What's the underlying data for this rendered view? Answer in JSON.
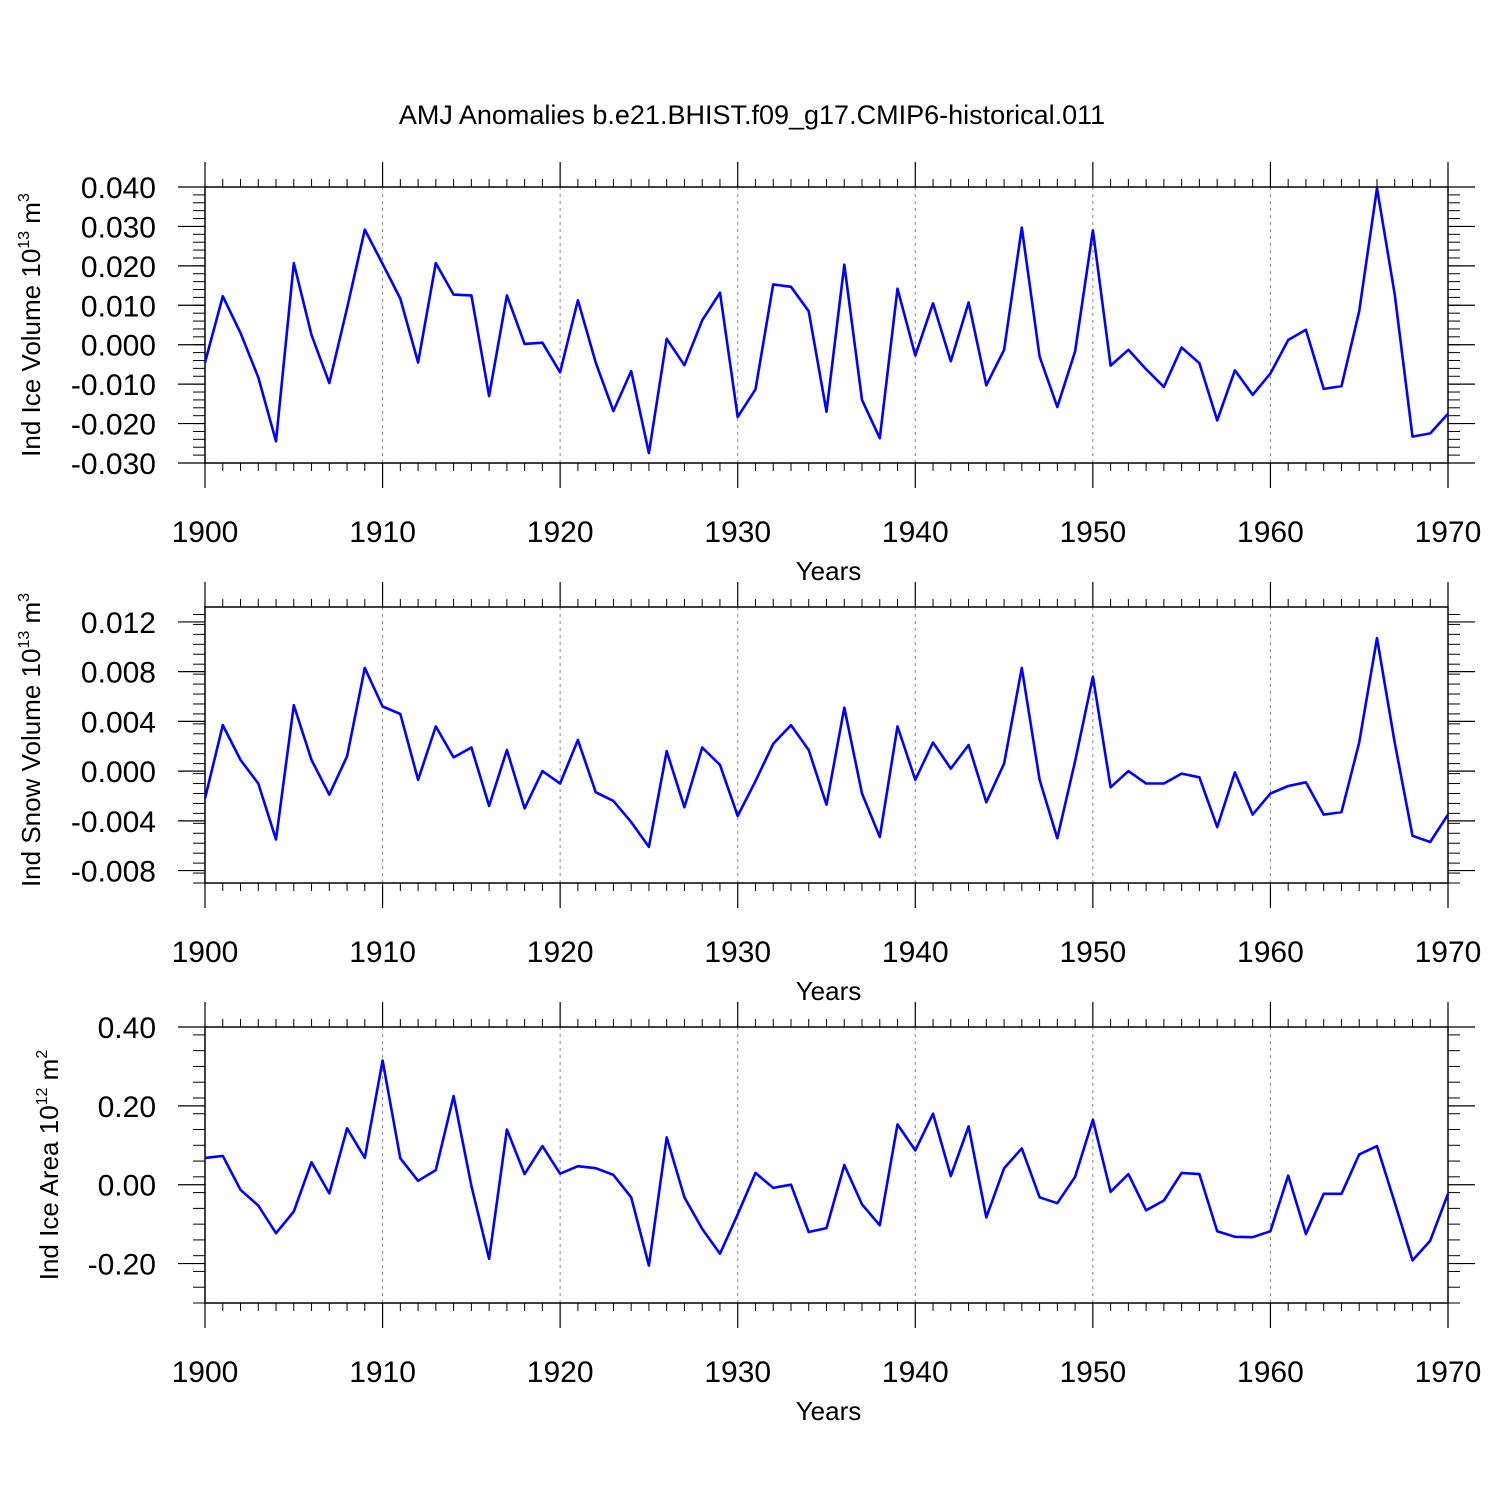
{
  "title": "AMJ Anomalies b.e21.BHIST.f09_g17.CMIP6-historical.011",
  "line_color": "#0000ff",
  "chart_data": [
    {
      "type": "line",
      "ylabel": "Ind Ice Volume 10",
      "ylabel_exp": "13",
      "ylabel_unit": " m",
      "ylabel_unit_exp": "3",
      "xlabel": "Years",
      "xlim": [
        1900,
        1970
      ],
      "ylim": [
        -0.03,
        0.04
      ],
      "xticks": [
        1900,
        1910,
        1920,
        1930,
        1940,
        1950,
        1960,
        1970
      ],
      "yticks": [
        -0.03,
        -0.02,
        -0.01,
        0.0,
        0.01,
        0.02,
        0.03,
        0.04
      ],
      "yticklabels": [
        "-0.030",
        "-0.020",
        "-0.010",
        "0.000",
        "0.010",
        "0.020",
        "0.030",
        "0.040"
      ],
      "grid": "dashed vertical at major x ticks",
      "x": [
        1900,
        1901,
        1902,
        1903,
        1904,
        1905,
        1906,
        1907,
        1908,
        1909,
        1910,
        1911,
        1912,
        1913,
        1914,
        1915,
        1916,
        1917,
        1918,
        1919,
        1920,
        1921,
        1922,
        1923,
        1924,
        1925,
        1926,
        1927,
        1928,
        1929,
        1930,
        1931,
        1932,
        1933,
        1934,
        1935,
        1936,
        1937,
        1938,
        1939,
        1940,
        1941,
        1942,
        1943,
        1944,
        1945,
        1946,
        1947,
        1948,
        1949,
        1950,
        1951,
        1952,
        1953,
        1954,
        1955,
        1956,
        1957,
        1958,
        1959,
        1960,
        1961,
        1962,
        1963,
        1964,
        1965,
        1966,
        1967,
        1968,
        1969,
        1970
      ],
      "values": [
        -0.0045,
        0.0123,
        0.003,
        -0.0083,
        -0.0245,
        0.0207,
        0.0025,
        -0.0097,
        0.0093,
        0.0292,
        0.0205,
        0.0117,
        -0.0045,
        0.0207,
        0.0127,
        0.0125,
        -0.013,
        0.0125,
        0.0002,
        0.0005,
        -0.007,
        0.0113,
        -0.0045,
        -0.0168,
        -0.0067,
        -0.0275,
        0.0015,
        -0.0052,
        0.0062,
        0.0132,
        -0.0183,
        -0.0113,
        0.0153,
        0.0147,
        0.0085,
        -0.017,
        0.0203,
        -0.014,
        -0.0237,
        0.0142,
        -0.0027,
        0.0105,
        -0.0042,
        0.0107,
        -0.0103,
        -0.0013,
        0.0297,
        -0.003,
        -0.0158,
        -0.0017,
        0.029,
        -0.0053,
        -0.0013,
        -0.0062,
        -0.0107,
        -0.0007,
        -0.0047,
        -0.0192,
        -0.0065,
        -0.0127,
        -0.0073,
        0.0012,
        0.0038,
        -0.0112,
        -0.0105,
        0.0085,
        0.0397,
        0.0128,
        -0.0233,
        -0.0225,
        -0.0175
      ]
    },
    {
      "type": "line",
      "ylabel": "Ind Snow Volume 10",
      "ylabel_exp": "13",
      "ylabel_unit": " m",
      "ylabel_unit_exp": "3",
      "xlabel": "Years",
      "xlim": [
        1900,
        1970
      ],
      "ylim": [
        -0.009,
        0.0132
      ],
      "xticks": [
        1900,
        1910,
        1920,
        1930,
        1940,
        1950,
        1960,
        1970
      ],
      "yticks": [
        -0.008,
        -0.004,
        0.0,
        0.004,
        0.008,
        0.012
      ],
      "yticklabels": [
        "-0.008",
        "-0.004",
        "0.000",
        "0.004",
        "0.008",
        "0.012"
      ],
      "grid": "dashed vertical at major x ticks",
      "x": [
        1900,
        1901,
        1902,
        1903,
        1904,
        1905,
        1906,
        1907,
        1908,
        1909,
        1910,
        1911,
        1912,
        1913,
        1914,
        1915,
        1916,
        1917,
        1918,
        1919,
        1920,
        1921,
        1922,
        1923,
        1924,
        1925,
        1926,
        1927,
        1928,
        1929,
        1930,
        1931,
        1932,
        1933,
        1934,
        1935,
        1936,
        1937,
        1938,
        1939,
        1940,
        1941,
        1942,
        1943,
        1944,
        1945,
        1946,
        1947,
        1948,
        1949,
        1950,
        1951,
        1952,
        1953,
        1954,
        1955,
        1956,
        1957,
        1958,
        1959,
        1960,
        1961,
        1962,
        1963,
        1964,
        1965,
        1966,
        1967,
        1968,
        1969,
        1970
      ],
      "values": [
        -0.0022,
        0.0037,
        0.0009,
        -0.001,
        -0.0055,
        0.0053,
        0.0009,
        -0.0019,
        0.0012,
        0.0083,
        0.0052,
        0.0046,
        -0.0007,
        0.0036,
        0.0011,
        0.0019,
        -0.0028,
        0.0017,
        -0.003,
        0.0,
        -0.001,
        0.0025,
        -0.0017,
        -0.0024,
        -0.0041,
        -0.0061,
        0.0016,
        -0.0029,
        0.0019,
        0.0005,
        -0.0036,
        -0.0008,
        0.0022,
        0.0037,
        0.0017,
        -0.0027,
        0.0051,
        -0.0018,
        -0.0053,
        0.0036,
        -0.0007,
        0.0023,
        0.0002,
        0.0021,
        -0.0025,
        0.0006,
        0.0083,
        -0.0007,
        -0.0054,
        0.0008,
        0.0076,
        -0.0013,
        0.0,
        -0.001,
        -0.001,
        -0.0002,
        -0.0005,
        -0.0045,
        -0.0001,
        -0.0035,
        -0.0018,
        -0.0012,
        -0.0009,
        -0.0035,
        -0.0033,
        0.0023,
        0.0107,
        0.0023,
        -0.0052,
        -0.0057,
        -0.0035
      ]
    },
    {
      "type": "line",
      "ylabel": "Ind Ice Area 10",
      "ylabel_exp": "12",
      "ylabel_unit": " m",
      "ylabel_unit_exp": "2",
      "xlabel": "Years",
      "xlim": [
        1900,
        1970
      ],
      "ylim": [
        -0.3,
        0.4
      ],
      "xticks": [
        1900,
        1910,
        1920,
        1930,
        1940,
        1950,
        1960,
        1970
      ],
      "yticks": [
        -0.2,
        0.0,
        0.2,
        0.4
      ],
      "yticklabels": [
        "-0.20",
        "0.00",
        "0.20",
        "0.40"
      ],
      "grid": "dashed vertical at major x ticks",
      "x": [
        1900,
        1901,
        1902,
        1903,
        1904,
        1905,
        1906,
        1907,
        1908,
        1909,
        1910,
        1911,
        1912,
        1913,
        1914,
        1915,
        1916,
        1917,
        1918,
        1919,
        1920,
        1921,
        1922,
        1923,
        1924,
        1925,
        1926,
        1927,
        1928,
        1929,
        1930,
        1931,
        1932,
        1933,
        1934,
        1935,
        1936,
        1937,
        1938,
        1939,
        1940,
        1941,
        1942,
        1943,
        1944,
        1945,
        1946,
        1947,
        1948,
        1949,
        1950,
        1951,
        1952,
        1953,
        1954,
        1955,
        1956,
        1957,
        1958,
        1959,
        1960,
        1961,
        1962,
        1963,
        1964,
        1965,
        1966,
        1967,
        1968,
        1969,
        1970
      ],
      "values": [
        0.068,
        0.073,
        -0.013,
        -0.053,
        -0.123,
        -0.068,
        0.057,
        -0.022,
        0.143,
        0.068,
        0.315,
        0.067,
        0.01,
        0.037,
        0.225,
        -0.003,
        -0.188,
        0.14,
        0.027,
        0.098,
        0.028,
        0.047,
        0.042,
        0.025,
        -0.032,
        -0.205,
        0.12,
        -0.032,
        -0.112,
        -0.175,
        -0.075,
        0.03,
        -0.008,
        0.0,
        -0.12,
        -0.11,
        0.05,
        -0.05,
        -0.103,
        0.153,
        0.087,
        0.18,
        0.022,
        0.148,
        -0.083,
        0.042,
        0.092,
        -0.032,
        -0.047,
        0.02,
        0.165,
        -0.018,
        0.027,
        -0.065,
        -0.04,
        0.03,
        0.027,
        -0.118,
        -0.132,
        -0.133,
        -0.118,
        0.023,
        -0.125,
        -0.023,
        -0.023,
        0.077,
        0.098,
        -0.045,
        -0.192,
        -0.142,
        -0.023
      ]
    }
  ]
}
